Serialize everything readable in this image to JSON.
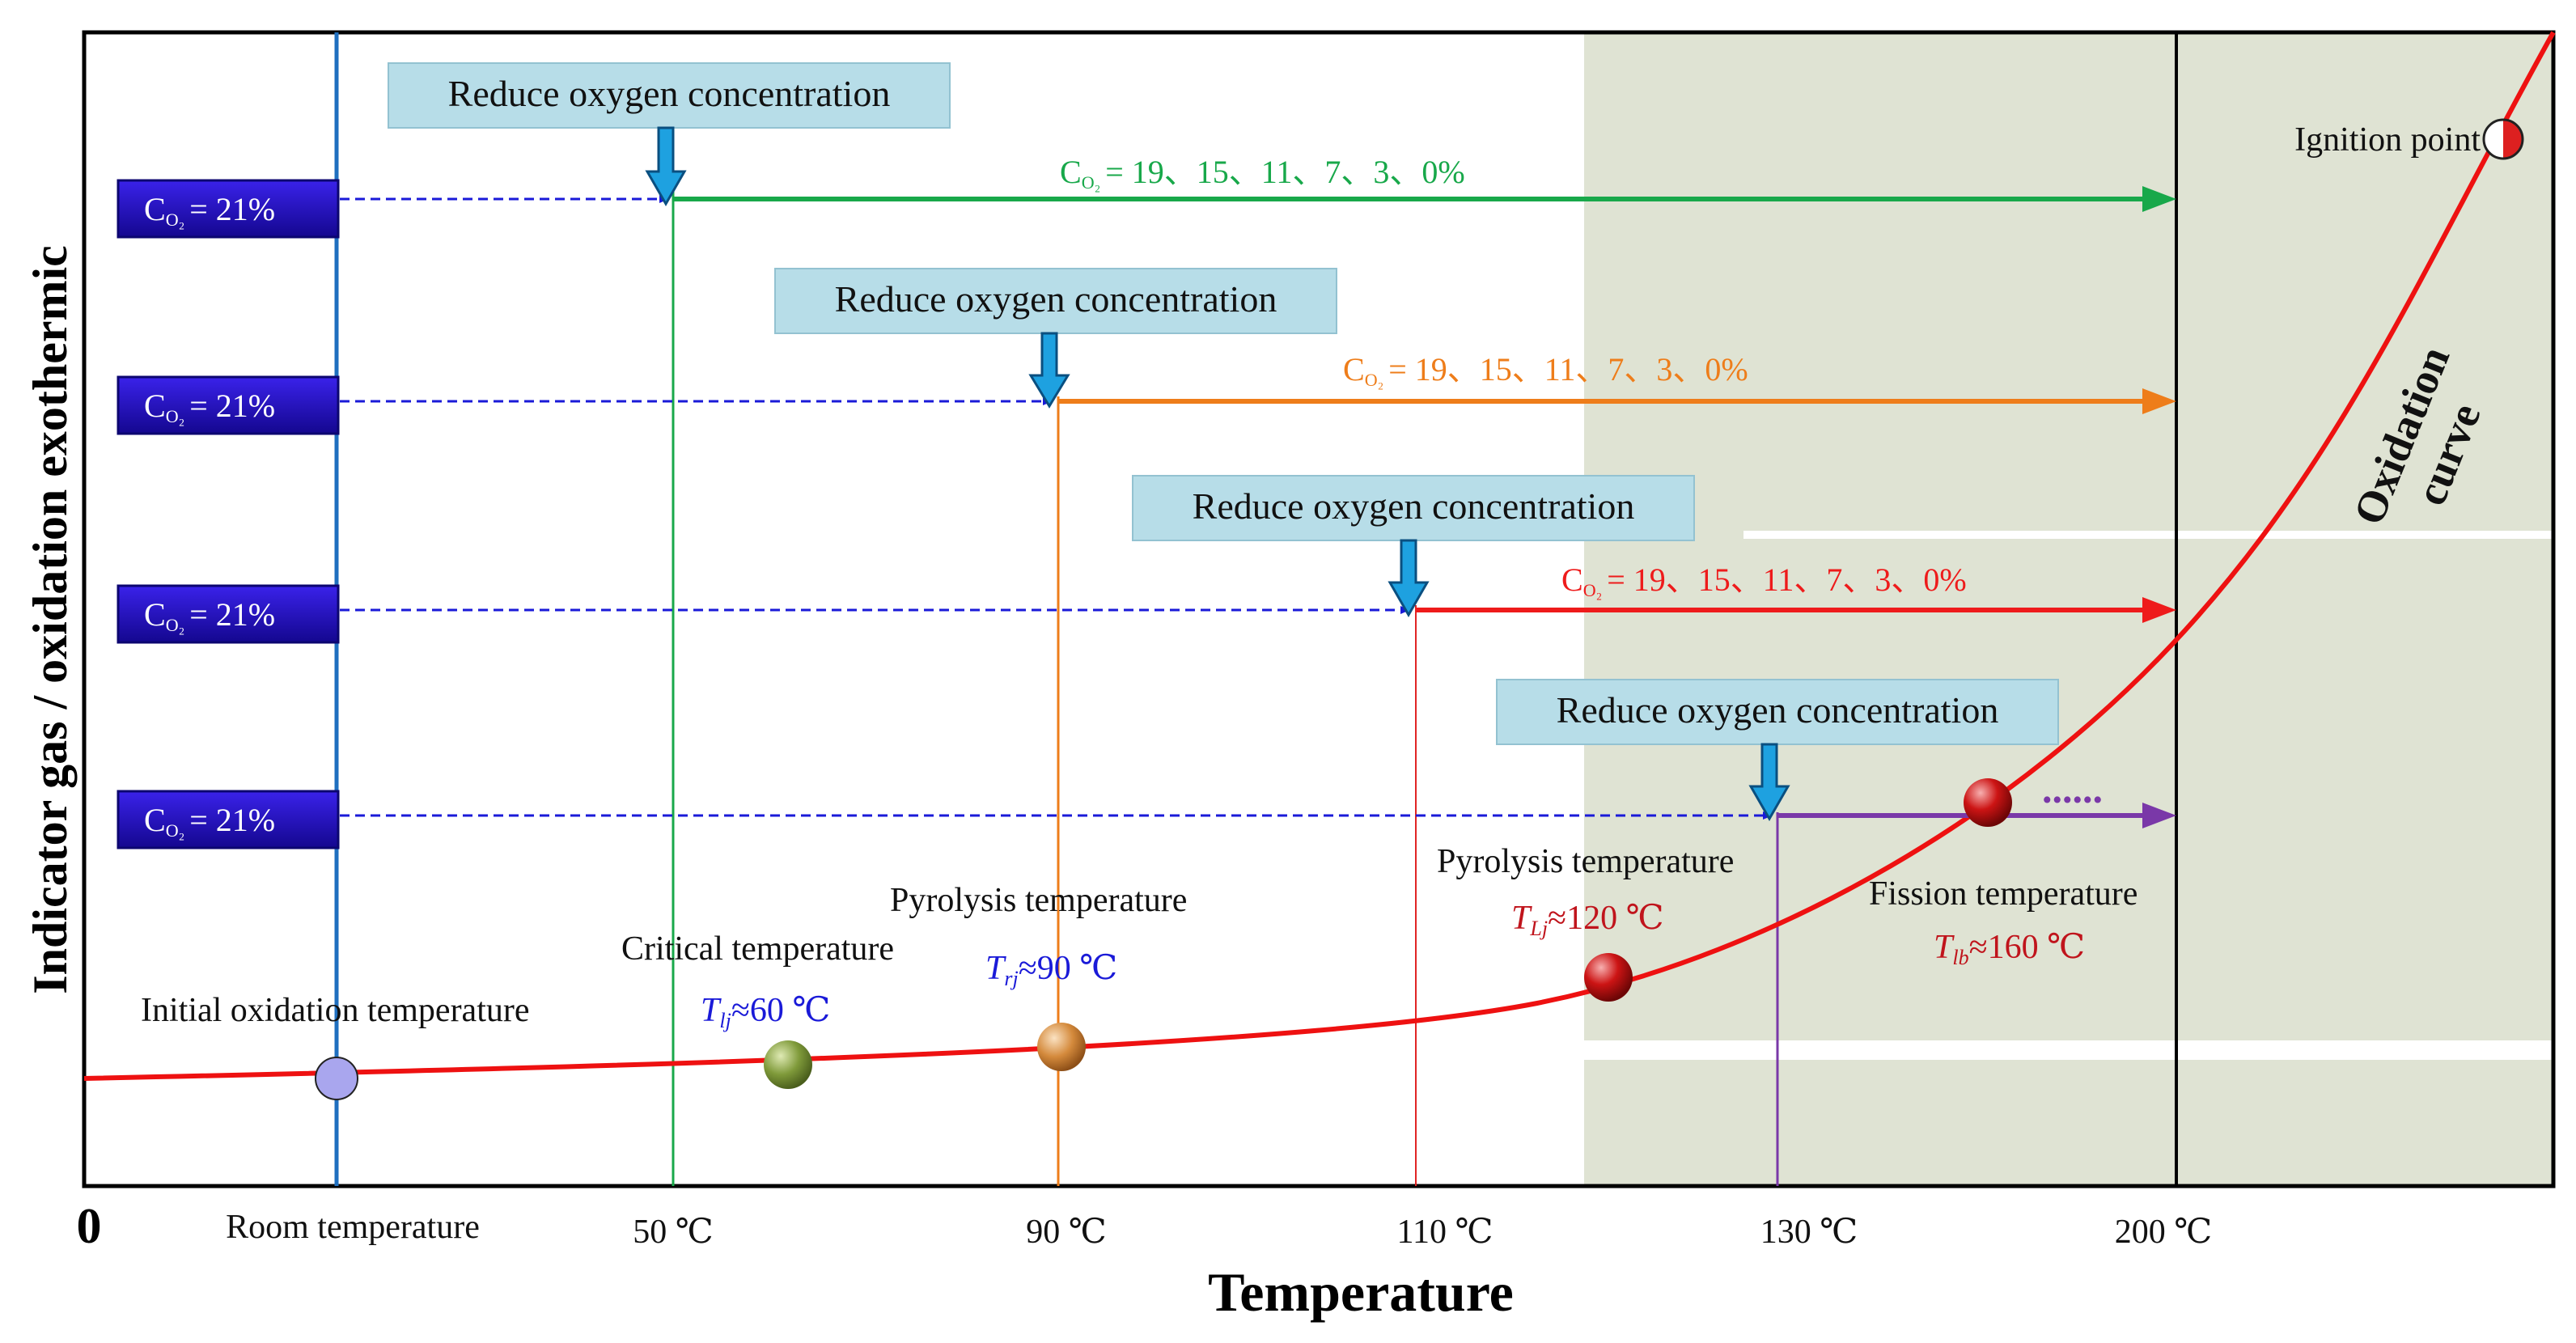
{
  "axes": {
    "origin_label": "0",
    "x_title": "Temperature",
    "y_title": "Indicator gas / oxidation exothermic",
    "x_ticks": [
      {
        "id": "room",
        "label": "Room temperature"
      },
      {
        "id": "t50",
        "label": "50 ℃"
      },
      {
        "id": "t90",
        "label": "90 ℃"
      },
      {
        "id": "t110",
        "label": "110 ℃"
      },
      {
        "id": "t130",
        "label": "130 ℃"
      },
      {
        "id": "t200",
        "label": "200 ℃"
      }
    ]
  },
  "stages": [
    {
      "reduce_label": "Reduce oxygen concentration",
      "start_label": "= 21%",
      "end_label": "= 19、15、11、7、3、0%",
      "color": "#18a84a"
    },
    {
      "reduce_label": "Reduce oxygen concentration",
      "start_label": "= 21%",
      "end_label": "= 19、15、11、7、3、0%",
      "color": "#ee7d1a"
    },
    {
      "reduce_label": "Reduce oxygen concentration",
      "start_label": "= 21%",
      "end_label": "= 19、15、11、7、3、0%",
      "color": "#ee1b1b"
    },
    {
      "reduce_label": "Reduce oxygen concentration",
      "start_label": "= 21%",
      "color": "#7a38a8"
    }
  ],
  "c_symbol": "C",
  "c_subscript": "O₂",
  "ellipsis": "......",
  "points": {
    "initial": {
      "title": "Initial oxidation temperature"
    },
    "critical": {
      "title": "Critical temperature",
      "sym": "T",
      "sub": "lj",
      "value": "≈60 ℃"
    },
    "pyrolysis1": {
      "title": "Pyrolysis temperature",
      "sym": "T",
      "sub": "rj",
      "value": "≈90 ℃"
    },
    "pyrolysis2": {
      "title": "Pyrolysis temperature",
      "sym": "T",
      "sub": "Lj",
      "value": "≈120 ℃"
    },
    "fission": {
      "title": "Fission temperature",
      "sym": "T",
      "sub": "lb",
      "value": "≈160 ℃"
    },
    "ignition": {
      "title": "Ignition point"
    }
  },
  "curve_label": [
    "Oxidation",
    "curve"
  ],
  "colors": {
    "box_fill": "#1f0ac8",
    "reduce_box": "#b7dde8",
    "down_arrow": "#1ea1e0",
    "dashed": "#1a1ad8",
    "curve": "#ee1111",
    "zone": "#dfe3d3",
    "room_line": "#1f6fbf",
    "blue_text": "#1a1ad8",
    "dark_red_text": "#c0141c"
  }
}
